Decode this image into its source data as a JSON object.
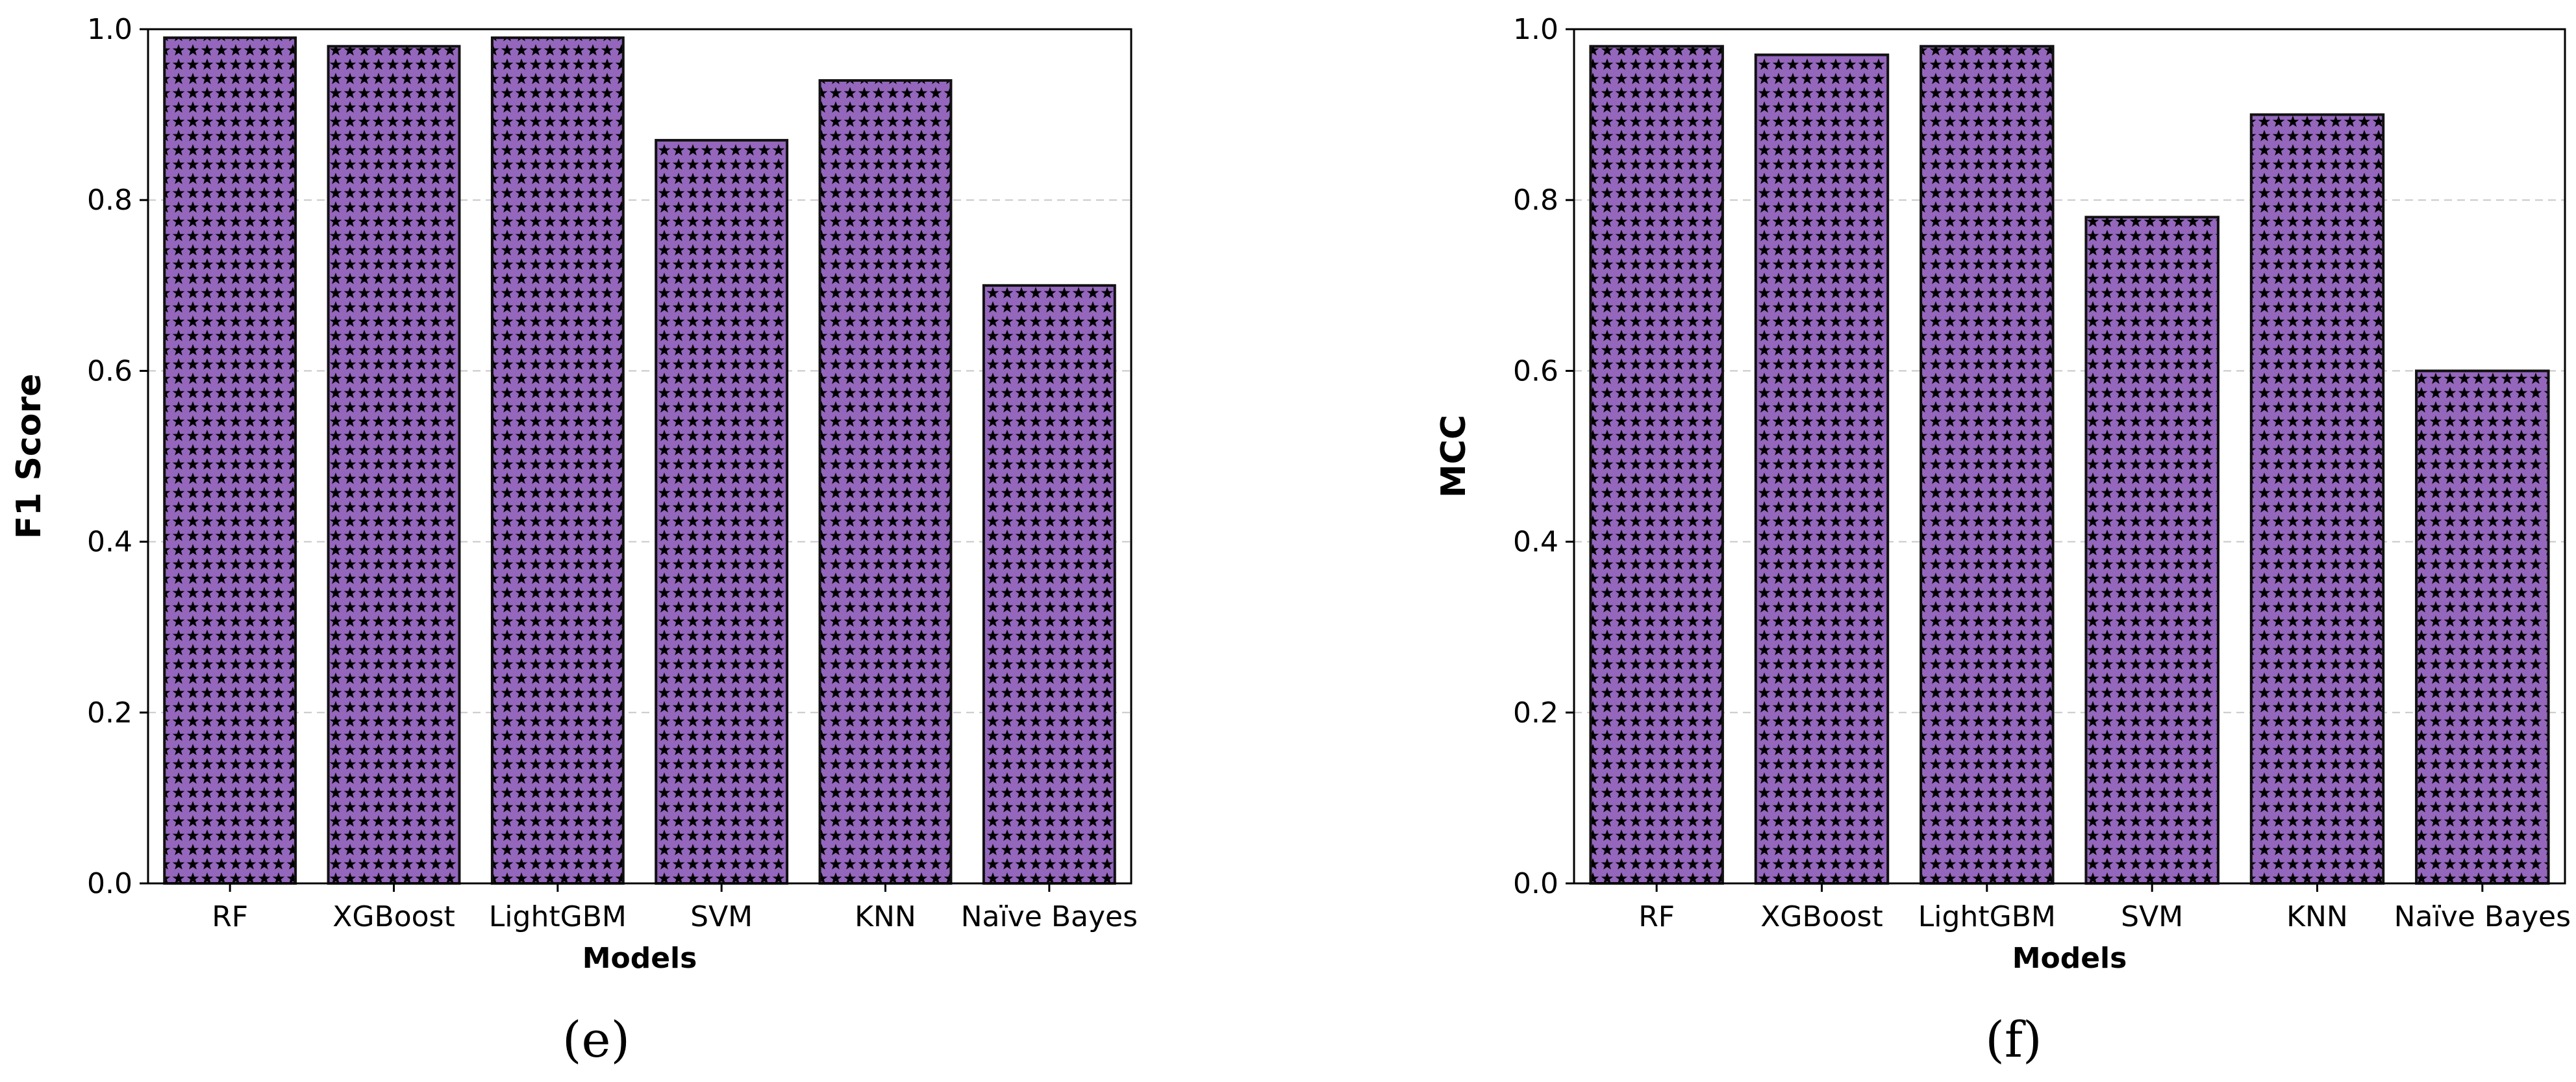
{
  "colors": {
    "bar_fill": "#9467bd",
    "bar_edge": "#111111",
    "hatch_star": "#000000",
    "grid": "#c8c8c8",
    "axis": "#000000"
  },
  "chart_data": [
    {
      "type": "bar",
      "panel": "(e)",
      "title": "",
      "xlabel": "Models",
      "ylabel": "F1 Score",
      "categories": [
        "RF",
        "XGBoost",
        "LightGBM",
        "SVM",
        "KNN",
        "Naïve Bayes"
      ],
      "values": [
        0.99,
        0.98,
        0.99,
        0.87,
        0.94,
        0.7
      ],
      "ylim": [
        0,
        1.0
      ],
      "yticks": [
        "0.0",
        "0.2",
        "0.4",
        "0.6",
        "0.8",
        "1.0"
      ],
      "grid": "y dashed",
      "hatch": "stars"
    },
    {
      "type": "bar",
      "panel": "(f)",
      "title": "",
      "xlabel": "Models",
      "ylabel": "MCC",
      "categories": [
        "RF",
        "XGBoost",
        "LightGBM",
        "SVM",
        "KNN",
        "Naïve Bayes"
      ],
      "values": [
        0.98,
        0.97,
        0.98,
        0.78,
        0.9,
        0.6
      ],
      "ylim": [
        0,
        1.0
      ],
      "yticks": [
        "0.0",
        "0.2",
        "0.4",
        "0.6",
        "0.8",
        "1.0"
      ],
      "grid": "y dashed",
      "hatch": "stars"
    }
  ]
}
